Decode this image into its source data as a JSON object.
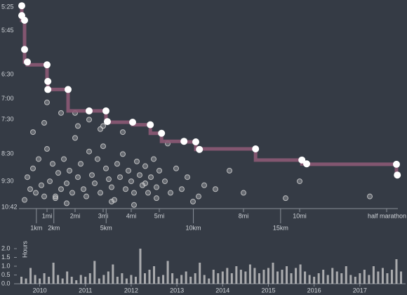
{
  "chart_data": [
    {
      "type": "scatter",
      "y_scale": "reciprocal",
      "xlim": [
        0,
        13.5
      ],
      "ylim": [
        325,
        642
      ],
      "xticks": [
        {
          "value": 1,
          "label": "1mi"
        },
        {
          "value": 2,
          "label": "2mi"
        },
        {
          "value": 3,
          "label": "3mi"
        },
        {
          "value": 4,
          "label": "4mi"
        },
        {
          "value": 5,
          "label": "5mi"
        },
        {
          "value": 8,
          "label": "8mi"
        },
        {
          "value": 10,
          "label": "10mi"
        },
        {
          "value": 13.1,
          "label": "half marathon"
        }
      ],
      "xticks_metric": [
        {
          "value": 0.621,
          "label": "1km"
        },
        {
          "value": 1.243,
          "label": "2km"
        },
        {
          "value": 3.107,
          "label": "5km"
        },
        {
          "value": 6.214,
          "label": "10km"
        },
        {
          "value": 9.321,
          "label": "15km"
        }
      ],
      "yticks": [
        {
          "value": 325,
          "label": "5:25"
        },
        {
          "value": 345,
          "label": "5:45"
        },
        {
          "value": 390,
          "label": "6:30"
        },
        {
          "value": 420,
          "label": "7:00"
        },
        {
          "value": 450,
          "label": "7:30"
        },
        {
          "value": 510,
          "label": "8:30"
        },
        {
          "value": 570,
          "label": "9:30"
        },
        {
          "value": 642,
          "label": "10:42"
        }
      ],
      "series": [
        {
          "color": "#d8d8d8",
          "x": [
            0.2,
            0.3,
            0.4,
            0.5,
            0.6,
            0.7,
            0.8,
            0.9,
            1.0,
            1.1,
            1.2,
            1.3,
            1.4,
            1.5,
            1.6,
            1.7,
            1.8,
            1.9,
            2.0,
            2.1,
            2.2,
            2.3,
            2.4,
            2.5,
            2.6,
            2.7,
            2.8,
            2.9,
            3.0,
            3.1,
            3.2,
            3.3,
            3.4,
            3.5,
            3.6,
            3.7,
            3.8,
            3.9,
            4.0,
            4.1,
            4.2,
            4.3,
            4.4,
            4.5,
            4.6,
            4.7,
            4.8,
            4.9,
            5.0,
            5.2,
            5.4,
            5.6,
            5.8,
            6.0,
            6.2,
            6.4,
            6.6,
            7.0,
            7.5,
            8.0,
            9.5,
            10.0,
            12.5,
            0.5,
            0.9,
            1.3,
            1.7,
            2.1,
            2.5,
            2.9,
            3.3,
            3.7,
            4.1,
            4.5,
            4.9,
            5.3,
            1.0,
            1.5,
            2.0,
            3.0
          ],
          "values": [
            620,
            560,
            590,
            540,
            600,
            520,
            580,
            610,
            500,
            570,
            530,
            615,
            550,
            590,
            520,
            575,
            545,
            600,
            480,
            560,
            530,
            590,
            610,
            505,
            555,
            575,
            520,
            600,
            495,
            540,
            565,
            585,
            620,
            530,
            560,
            510,
            590,
            545,
            570,
            600,
            525,
            555,
            580,
            535,
            600,
            560,
            520,
            585,
            545,
            570,
            600,
            540,
            590,
            560,
            625,
            610,
            580,
            590,
            545,
            600,
            615,
            570,
            610,
            470,
            455,
            610,
            630,
            460,
            450,
            465,
            625,
            470,
            635,
            575,
            615,
            490,
            425,
            440,
            440,
            460
          ]
        },
        {
          "color": "#8c5a74",
          "style": "step",
          "x": [
            0.1,
            0.1,
            0.2,
            0.2,
            0.3,
            1.0,
            1.03,
            1.03,
            1.75,
            2.5,
            3.1,
            3.15,
            4.05,
            4.68,
            5.08,
            5.88,
            6.3,
            6.43,
            8.43,
            10.08,
            10.25,
            13.45,
            13.48
          ],
          "values": [
            324,
            332,
            336,
            363,
            376,
            379,
            398,
            408,
            408,
            437,
            437,
            453,
            454,
            458,
            472,
            486,
            487,
            501,
            500,
            522,
            530,
            531,
            555
          ]
        }
      ]
    },
    {
      "type": "bar",
      "y_label": "Hours",
      "color": "#c8c8c8",
      "xlim": [
        2009.5,
        2018
      ],
      "ylim": [
        0,
        2
      ],
      "xticks": [
        2010,
        2011,
        2012,
        2013,
        2014,
        2015,
        2016,
        2017
      ],
      "yticks": [
        {
          "value": 0,
          "label": "0.0"
        },
        0.5,
        {
          "value": 1,
          "label": "1.0"
        },
        1.5,
        {
          "value": 2,
          "label": "2.0"
        }
      ],
      "x": [
        2009.6,
        2009.7,
        2009.8,
        2009.9,
        2010.0,
        2010.1,
        2010.2,
        2010.3,
        2010.4,
        2010.5,
        2010.6,
        2010.7,
        2010.8,
        2010.9,
        2011.0,
        2011.1,
        2011.2,
        2011.3,
        2011.4,
        2011.5,
        2011.6,
        2011.7,
        2011.8,
        2011.9,
        2012.0,
        2012.1,
        2012.2,
        2012.3,
        2012.4,
        2012.5,
        2012.6,
        2012.7,
        2012.8,
        2012.9,
        2013.0,
        2013.1,
        2013.2,
        2013.3,
        2013.4,
        2013.5,
        2013.6,
        2013.7,
        2013.8,
        2013.9,
        2014.0,
        2014.1,
        2014.2,
        2014.3,
        2014.4,
        2014.5,
        2014.6,
        2014.7,
        2014.8,
        2014.9,
        2015.0,
        2015.1,
        2015.2,
        2015.3,
        2015.4,
        2015.5,
        2015.6,
        2015.7,
        2015.8,
        2015.9,
        2016.0,
        2016.1,
        2016.2,
        2016.3,
        2016.4,
        2016.5,
        2016.6,
        2016.7,
        2016.8,
        2016.9,
        2017.0,
        2017.1,
        2017.2,
        2017.3,
        2017.4,
        2017.5,
        2017.6,
        2017.7,
        2017.8,
        2017.9
      ],
      "values": [
        0.4,
        0.3,
        0.9,
        0.5,
        0.3,
        0.6,
        0.4,
        1.2,
        0.5,
        0.3,
        0.7,
        0.4,
        0.2,
        0.5,
        0.4,
        0.6,
        1.3,
        0.3,
        0.5,
        0.7,
        1.1,
        0.4,
        0.6,
        0.3,
        0.5,
        0.4,
        2.0,
        0.6,
        0.8,
        1.0,
        0.4,
        0.5,
        1.3,
        0.6,
        0.3,
        0.5,
        0.7,
        0.4,
        0.6,
        1.2,
        0.5,
        0.3,
        0.8,
        0.6,
        0.7,
        0.9,
        0.6,
        1.0,
        0.8,
        0.7,
        1.1,
        0.9,
        0.6,
        0.8,
        0.9,
        1.2,
        0.7,
        0.8,
        1.0,
        0.6,
        0.9,
        1.1,
        0.7,
        0.5,
        0.4,
        0.6,
        0.8,
        0.5,
        0.9,
        0.7,
        0.6,
        1.0,
        0.5,
        0.4,
        0.6,
        0.8,
        0.5,
        1.0,
        0.7,
        0.9,
        0.6,
        0.8,
        1.4,
        0.7
      ]
    }
  ]
}
